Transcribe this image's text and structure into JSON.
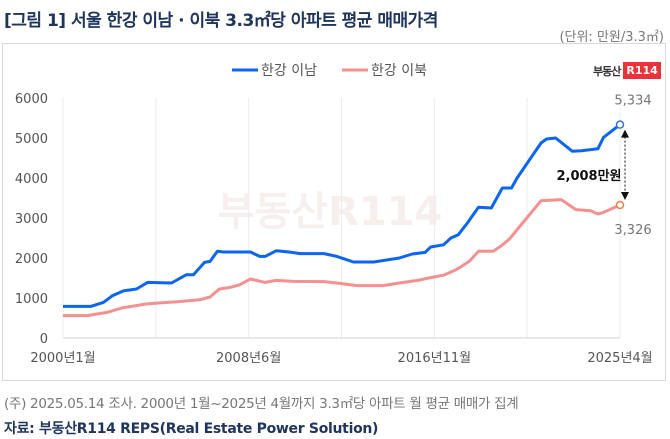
{
  "title": "[그림 1] 서울 한강 이남 · 이북 3.3㎡당 아파트 평균 매매가격",
  "unit": "(단위: 만원/3.3㎡)",
  "logo": {
    "text": "부동산",
    "badge": "R114"
  },
  "watermark": "부동산R114",
  "footnote": "(주) 2025.05.14 조사. 2000년 1월~2025년 4월까지 3.3㎡당 아파트 월 평균 매매가 집계",
  "source": "자료: 부동산R114 REPS(Real Estate Power Solution)",
  "chart_data": {
    "type": "line",
    "title": "",
    "xlabel": "",
    "ylabel": "",
    "ylim": [
      0,
      6000
    ],
    "yticks": [
      "0",
      "1000",
      "2000",
      "3000",
      "4000",
      "5000",
      "6000"
    ],
    "xticks": [
      "2000년1월",
      "2008년6월",
      "2016년11월",
      "2025년4월"
    ],
    "xrange": [
      "2000-01",
      "2025-04"
    ],
    "grid": "vertical",
    "legend": "top-center",
    "series": [
      {
        "name": "한강 이남",
        "color": "#0a66f0",
        "x": [
          "2000-01",
          "2001-04",
          "2001-11",
          "2002-04",
          "2002-10",
          "2003-05",
          "2003-11",
          "2004-12",
          "2005-08",
          "2005-12",
          "2006-06",
          "2006-09",
          "2007-01",
          "2007-04",
          "2008-07",
          "2008-12",
          "2009-03",
          "2009-09",
          "2010-04",
          "2010-10",
          "2011-11",
          "2012-06",
          "2013-03",
          "2014-02",
          "2015-04",
          "2015-11",
          "2016-06",
          "2016-09",
          "2017-04",
          "2017-08",
          "2017-12",
          "2018-05",
          "2018-11",
          "2019-06",
          "2019-12",
          "2020-05",
          "2020-08",
          "2021-09",
          "2021-12",
          "2022-05",
          "2023-02",
          "2023-07",
          "2024-04",
          "2024-07",
          "2025-04"
        ],
        "y": [
          790,
          790,
          890,
          1060,
          1180,
          1225,
          1390,
          1375,
          1580,
          1580,
          1890,
          1915,
          2170,
          2150,
          2150,
          2040,
          2040,
          2180,
          2150,
          2110,
          2110,
          2040,
          1900,
          1900,
          2000,
          2100,
          2140,
          2275,
          2330,
          2500,
          2580,
          2875,
          3270,
          3250,
          3750,
          3750,
          4000,
          4875,
          4975,
          5000,
          4670,
          4680,
          4730,
          5015,
          5334
        ]
      },
      {
        "name": "한강 이북",
        "color": "#f59090",
        "x": [
          "2000-01",
          "2001-02",
          "2002-01",
          "2002-09",
          "2003-10",
          "2004-05",
          "2005-04",
          "2006-04",
          "2006-09",
          "2007-02",
          "2007-08",
          "2008-01",
          "2008-07",
          "2009-03",
          "2009-09",
          "2010-06",
          "2011-11",
          "2012-06",
          "2013-05",
          "2014-07",
          "2015-04",
          "2016-02",
          "2016-08",
          "2017-04",
          "2017-11",
          "2018-06",
          "2018-11",
          "2019-07",
          "2019-11",
          "2020-04",
          "2020-11",
          "2021-09",
          "2022-08",
          "2023-04",
          "2023-12",
          "2024-04",
          "2024-07",
          "2025-04"
        ],
        "y": [
          560,
          560,
          640,
          750,
          850,
          875,
          910,
          960,
          1025,
          1225,
          1265,
          1330,
          1475,
          1390,
          1440,
          1415,
          1410,
          1375,
          1310,
          1310,
          1375,
          1440,
          1500,
          1570,
          1710,
          1915,
          2170,
          2170,
          2290,
          2480,
          2875,
          3430,
          3460,
          3210,
          3180,
          3100,
          3140,
          3326
        ]
      }
    ],
    "annotations": {
      "end_high": "5,334",
      "end_low": "3,326",
      "gap": "2,008만원"
    }
  }
}
